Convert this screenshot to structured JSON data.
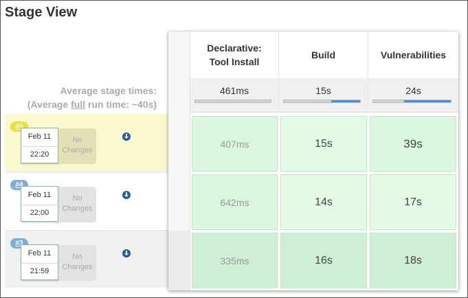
{
  "page": {
    "title": "Stage View"
  },
  "summary": {
    "line1": "Average stage times:",
    "line2_pre": "(Average ",
    "line2_em": "full",
    "line2_post": " run time: ~40s)"
  },
  "stages": [
    {
      "name_line1": "Declarative:",
      "name_line2": "Tool Install",
      "avg": "461ms",
      "bar_fill_fraction": 0.0
    },
    {
      "name_line1": "Build",
      "name_line2": "",
      "avg": "15s",
      "bar_fill_fraction": 0.38
    },
    {
      "name_line1": "Vulnerabilities",
      "name_line2": "",
      "avg": "24s",
      "bar_fill_fraction": 0.6
    }
  ],
  "builds": [
    {
      "number": "#5",
      "date": "Feb 11",
      "time": "22:20",
      "changes_line1": "No",
      "changes_line2": "Changes",
      "durations": [
        "407ms",
        "15s",
        "39s"
      ]
    },
    {
      "number": "#4",
      "date": "Feb 11",
      "time": "22:00",
      "changes_line1": "No",
      "changes_line2": "Changes",
      "durations": [
        "642ms",
        "14s",
        "17s"
      ]
    },
    {
      "number": "#3",
      "date": "Feb 11",
      "time": "21:59",
      "changes_line1": "No",
      "changes_line2": "Changes",
      "durations": [
        "335ms",
        "16s",
        "18s"
      ]
    }
  ],
  "colors": {
    "success_cell": "#daf6df",
    "highlight_row": "#faf8cd",
    "progress_fill": "#4a90d9",
    "badge_current": "#e9e040",
    "badge_default": "#7daed3"
  },
  "icons": {
    "download": "download-icon"
  }
}
